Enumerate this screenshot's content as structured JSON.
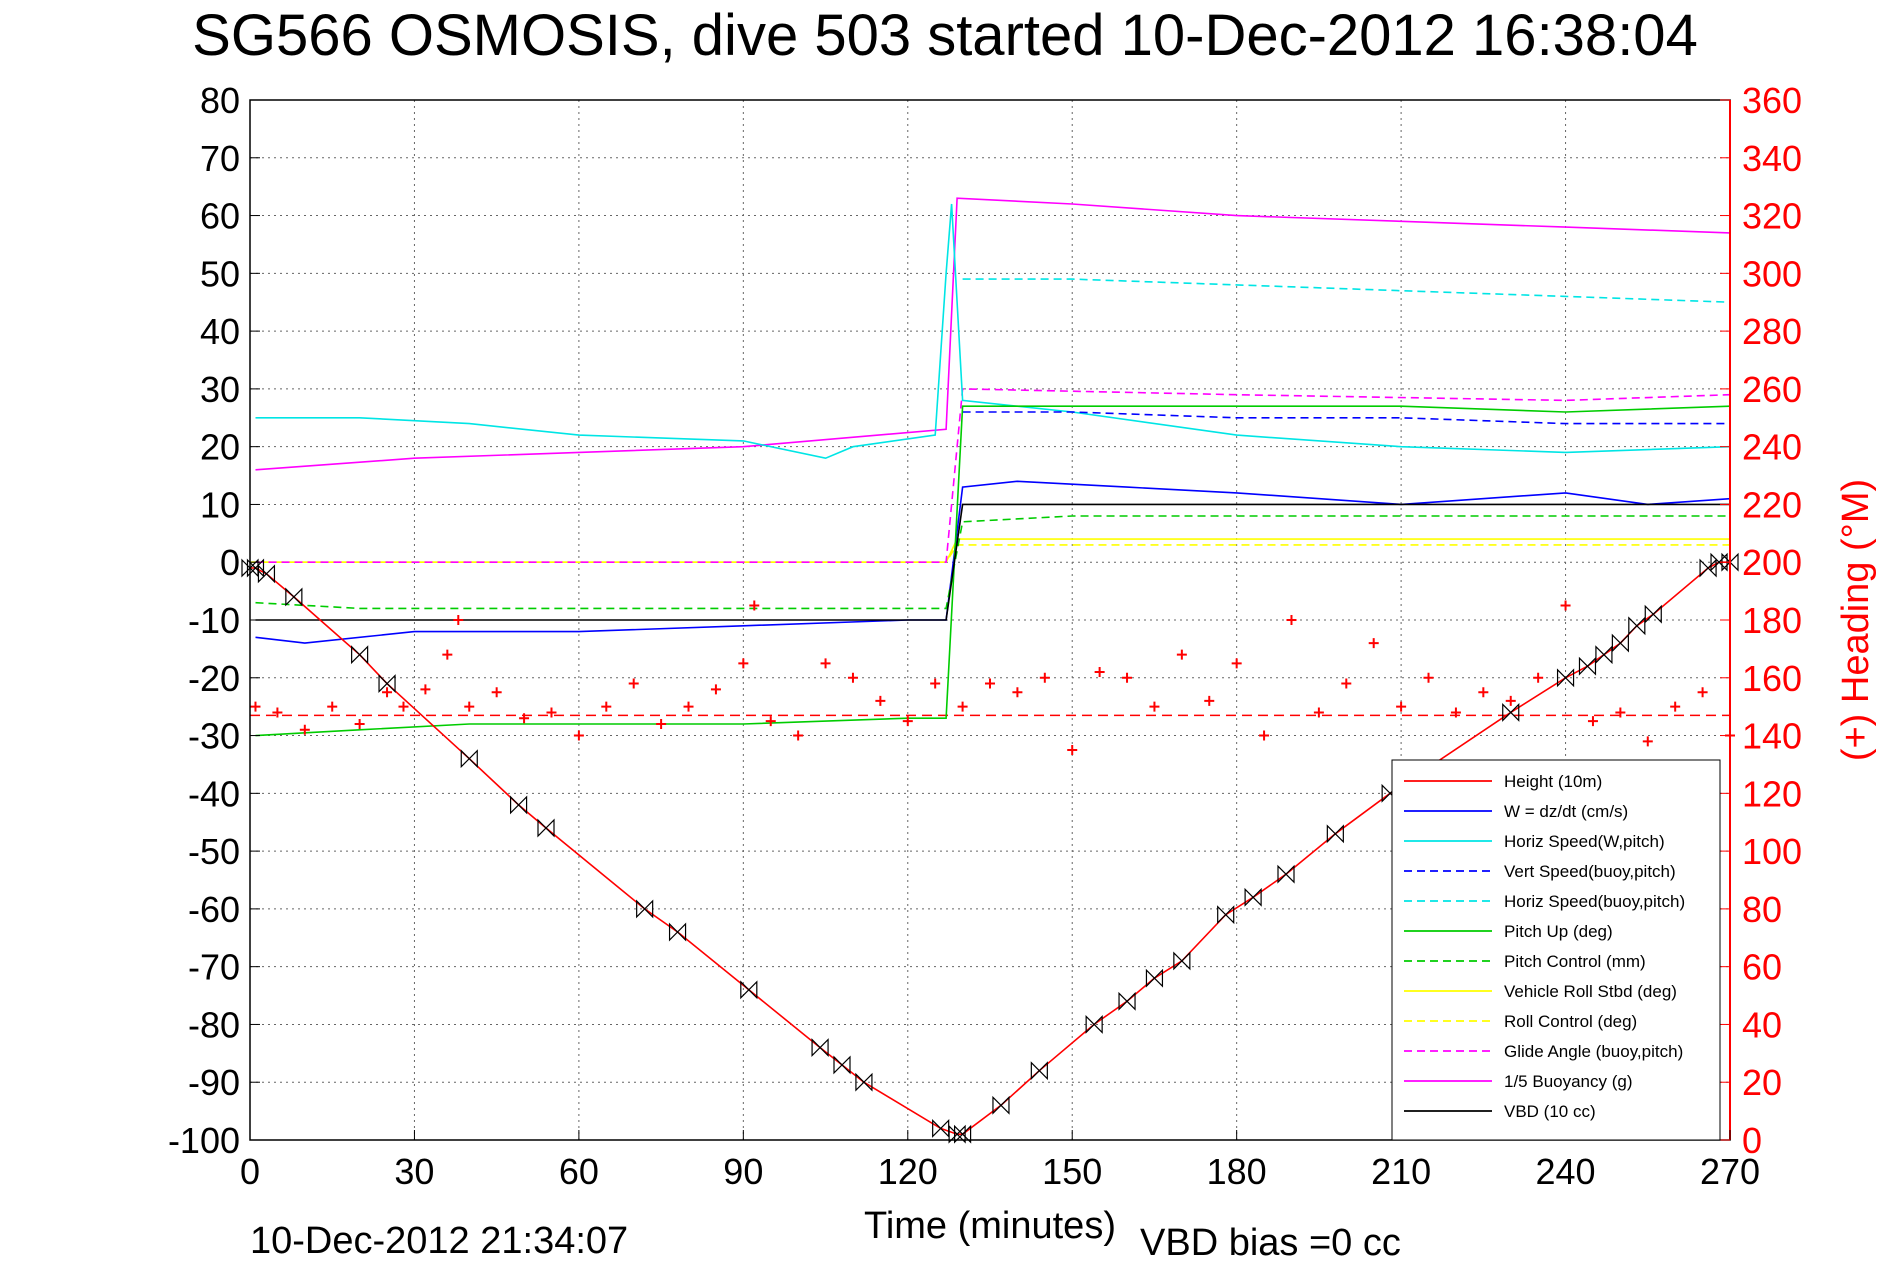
{
  "chart_data": {
    "type": "line",
    "title": "SG566 OSMOSIS, dive 503 started 10-Dec-2012 16:38:04",
    "xlabel": "Time (minutes)",
    "ylabel_right": "(+) Heading (°M)",
    "footer_left": "10-Dec-2012 21:34:07",
    "footer_right": "VBD bias =0 cc",
    "xlim": [
      0,
      270
    ],
    "ylim": [
      -100,
      80
    ],
    "y2lim": [
      0,
      360
    ],
    "xticks": [
      "0",
      "30",
      "60",
      "90",
      "120",
      "150",
      "180",
      "210",
      "240",
      "270"
    ],
    "yticks": [
      "-100",
      "-90",
      "-80",
      "-70",
      "-60",
      "-50",
      "-40",
      "-30",
      "-20",
      "-10",
      "0",
      "10",
      "20",
      "30",
      "40",
      "50",
      "60",
      "70",
      "80"
    ],
    "y2ticks": [
      "0",
      "20",
      "40",
      "60",
      "80",
      "100",
      "120",
      "140",
      "160",
      "180",
      "200",
      "220",
      "240",
      "260",
      "280",
      "300",
      "320",
      "340",
      "360"
    ],
    "grid": true,
    "legend_position": "lower-right",
    "series": [
      {
        "name": "Height (10m)",
        "color": "#ff0000",
        "dash": "solid",
        "values": [
          [
            0,
            -1
          ],
          [
            1,
            -1
          ],
          [
            3,
            -2
          ],
          [
            8,
            -6
          ],
          [
            20,
            -16
          ],
          [
            25,
            -21
          ],
          [
            40,
            -34
          ],
          [
            49,
            -42
          ],
          [
            54,
            -46
          ],
          [
            72,
            -60
          ],
          [
            78,
            -64
          ],
          [
            91,
            -74
          ],
          [
            104,
            -84
          ],
          [
            108,
            -87
          ],
          [
            112,
            -90
          ],
          [
            126,
            -98
          ],
          [
            129,
            -99
          ],
          [
            130,
            -99
          ],
          [
            137,
            -94
          ],
          [
            144,
            -88
          ],
          [
            154,
            -80
          ],
          [
            160,
            -76
          ],
          [
            165,
            -72
          ],
          [
            170,
            -69
          ],
          [
            178,
            -61
          ],
          [
            183,
            -58
          ],
          [
            189,
            -54
          ],
          [
            198,
            -47
          ],
          [
            208,
            -40
          ],
          [
            230,
            -26
          ],
          [
            240,
            -20
          ],
          [
            244,
            -18
          ],
          [
            247,
            -16
          ],
          [
            250,
            -14
          ],
          [
            253,
            -11
          ],
          [
            256,
            -9
          ],
          [
            266,
            -1
          ],
          [
            268,
            0
          ],
          [
            270,
            0
          ]
        ]
      },
      {
        "name": "W = dz/dt (cm/s)",
        "color": "#0000ff",
        "dash": "solid",
        "values": [
          [
            1,
            -13
          ],
          [
            10,
            -14
          ],
          [
            30,
            -12
          ],
          [
            60,
            -12
          ],
          [
            90,
            -11
          ],
          [
            120,
            -10
          ],
          [
            127,
            -10
          ],
          [
            130,
            13
          ],
          [
            140,
            14
          ],
          [
            160,
            13
          ],
          [
            180,
            12
          ],
          [
            210,
            10
          ],
          [
            240,
            12
          ],
          [
            255,
            10
          ],
          [
            270,
            11
          ]
        ]
      },
      {
        "name": "Horiz Speed(W,pitch)",
        "color": "#00e5e5",
        "dash": "solid",
        "values": [
          [
            1,
            25
          ],
          [
            20,
            25
          ],
          [
            40,
            24
          ],
          [
            60,
            22
          ],
          [
            90,
            21
          ],
          [
            105,
            18
          ],
          [
            110,
            20
          ],
          [
            125,
            22
          ],
          [
            127,
            50
          ],
          [
            128,
            62
          ],
          [
            130,
            28
          ],
          [
            150,
            26
          ],
          [
            180,
            22
          ],
          [
            210,
            20
          ],
          [
            240,
            19
          ],
          [
            270,
            20
          ]
        ]
      },
      {
        "name": "Vert Speed(buoy,pitch)",
        "color": "#0000ff",
        "dash": "dash",
        "values": [
          [
            130,
            26
          ],
          [
            150,
            26
          ],
          [
            180,
            25
          ],
          [
            210,
            25
          ],
          [
            240,
            24
          ],
          [
            270,
            24
          ]
        ]
      },
      {
        "name": "Horiz Speed(buoy,pitch)",
        "color": "#00e5e5",
        "dash": "dash",
        "values": [
          [
            130,
            49
          ],
          [
            150,
            49
          ],
          [
            180,
            48
          ],
          [
            210,
            47
          ],
          [
            240,
            46
          ],
          [
            270,
            45
          ]
        ]
      },
      {
        "name": "Pitch Up (deg)",
        "color": "#00cc00",
        "dash": "solid",
        "values": [
          [
            1,
            -30
          ],
          [
            20,
            -29
          ],
          [
            40,
            -28
          ],
          [
            60,
            -28
          ],
          [
            90,
            -28
          ],
          [
            120,
            -27
          ],
          [
            127,
            -27
          ],
          [
            130,
            27
          ],
          [
            150,
            27
          ],
          [
            180,
            27
          ],
          [
            210,
            27
          ],
          [
            240,
            26
          ],
          [
            270,
            27
          ]
        ]
      },
      {
        "name": "Pitch Control (mm)",
        "color": "#00cc00",
        "dash": "dash",
        "values": [
          [
            1,
            -7
          ],
          [
            20,
            -8
          ],
          [
            60,
            -8
          ],
          [
            90,
            -8
          ],
          [
            127,
            -8
          ],
          [
            130,
            7
          ],
          [
            150,
            8
          ],
          [
            180,
            8
          ],
          [
            210,
            8
          ],
          [
            240,
            8
          ],
          [
            270,
            8
          ]
        ]
      },
      {
        "name": "Vehicle Roll Stbd (deg)",
        "color": "#ffff00",
        "dash": "solid",
        "values": [
          [
            0,
            0
          ],
          [
            127,
            0
          ],
          [
            129,
            4
          ],
          [
            270,
            4
          ]
        ]
      },
      {
        "name": "Roll Control (deg)",
        "color": "#ffff00",
        "dash": "dash",
        "values": [
          [
            0,
            0
          ],
          [
            127,
            0
          ],
          [
            129,
            3
          ],
          [
            270,
            3
          ]
        ]
      },
      {
        "name": "Glide Angle (buoy,pitch)",
        "color": "#ff00ff",
        "dash": "dash",
        "values": [
          [
            1,
            0
          ],
          [
            127,
            0
          ],
          [
            130,
            30
          ],
          [
            180,
            29
          ],
          [
            240,
            28
          ],
          [
            270,
            29
          ]
        ]
      },
      {
        "name": "1/5 Buoyancy (g)",
        "color": "#ff00ff",
        "dash": "solid",
        "values": [
          [
            1,
            16
          ],
          [
            30,
            18
          ],
          [
            60,
            19
          ],
          [
            90,
            20
          ],
          [
            127,
            23
          ],
          [
            129,
            63
          ],
          [
            150,
            62
          ],
          [
            180,
            60
          ],
          [
            210,
            59
          ],
          [
            240,
            58
          ],
          [
            270,
            57
          ]
        ]
      },
      {
        "name": "VBD (10 cc)",
        "color": "#000000",
        "dash": "solid",
        "values": [
          [
            1,
            -10
          ],
          [
            60,
            -10
          ],
          [
            127,
            -10
          ],
          [
            130,
            10
          ],
          [
            270,
            10
          ]
        ]
      }
    ],
    "heading_series": {
      "name": "heading",
      "axis": "right",
      "color": "#ff0000",
      "marker": "+",
      "mean": 147,
      "values": [
        [
          1,
          150
        ],
        [
          5,
          148
        ],
        [
          10,
          142
        ],
        [
          15,
          150
        ],
        [
          20,
          144
        ],
        [
          25,
          155
        ],
        [
          28,
          150
        ],
        [
          32,
          156
        ],
        [
          36,
          168
        ],
        [
          38,
          180
        ],
        [
          40,
          150
        ],
        [
          45,
          155
        ],
        [
          50,
          146
        ],
        [
          55,
          148
        ],
        [
          60,
          140
        ],
        [
          65,
          150
        ],
        [
          70,
          158
        ],
        [
          75,
          144
        ],
        [
          80,
          150
        ],
        [
          85,
          156
        ],
        [
          90,
          165
        ],
        [
          92,
          185
        ],
        [
          95,
          145
        ],
        [
          100,
          140
        ],
        [
          105,
          165
        ],
        [
          110,
          160
        ],
        [
          115,
          152
        ],
        [
          120,
          145
        ],
        [
          125,
          158
        ],
        [
          130,
          150
        ],
        [
          135,
          158
        ],
        [
          140,
          155
        ],
        [
          145,
          160
        ],
        [
          150,
          135
        ],
        [
          155,
          162
        ],
        [
          160,
          160
        ],
        [
          165,
          150
        ],
        [
          170,
          168
        ],
        [
          175,
          152
        ],
        [
          180,
          165
        ],
        [
          185,
          140
        ],
        [
          190,
          180
        ],
        [
          195,
          148
        ],
        [
          200,
          158
        ],
        [
          205,
          172
        ],
        [
          210,
          150
        ],
        [
          215,
          160
        ],
        [
          220,
          148
        ],
        [
          225,
          155
        ],
        [
          230,
          152
        ],
        [
          235,
          160
        ],
        [
          240,
          185
        ],
        [
          245,
          145
        ],
        [
          250,
          148
        ],
        [
          255,
          138
        ],
        [
          260,
          150
        ],
        [
          265,
          155
        ],
        [
          270,
          140
        ]
      ]
    }
  }
}
